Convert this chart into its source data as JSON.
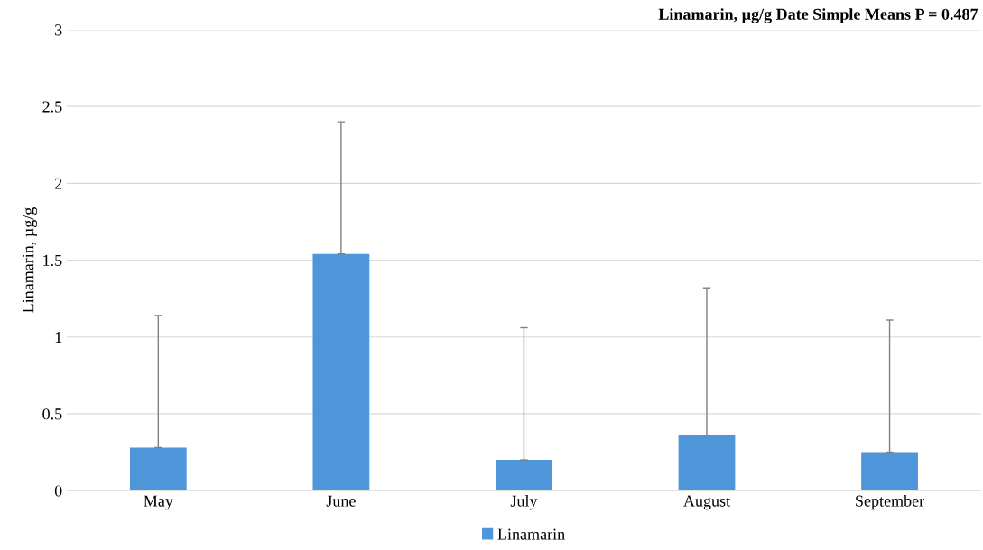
{
  "chart_data": {
    "type": "bar",
    "title": "Linamarin, µg/g Date Simple Means P = 0.487",
    "ylabel": "Linamarin, µg/g",
    "categories": [
      "May",
      "June",
      "July",
      "August",
      "September"
    ],
    "series": [
      {
        "name": "Linamarin",
        "color": "#4f95d9",
        "values": [
          0.28,
          1.54,
          0.2,
          0.36,
          0.25
        ],
        "errors": [
          [
            0.28,
            1.14
          ],
          [
            1.54,
            2.4
          ],
          [
            0.2,
            1.06
          ],
          [
            0.36,
            1.32
          ],
          [
            0.25,
            1.11
          ]
        ]
      }
    ],
    "ylim": [
      0,
      3
    ],
    "yticks": [
      0,
      {
        "value": 0.5,
        "label": "0.5"
      },
      1,
      {
        "value": 1.5,
        "label": "1.5"
      },
      2,
      {
        "value": 2.5,
        "label": "2.5"
      },
      3
    ],
    "grid": "y",
    "legend": "bottom"
  }
}
